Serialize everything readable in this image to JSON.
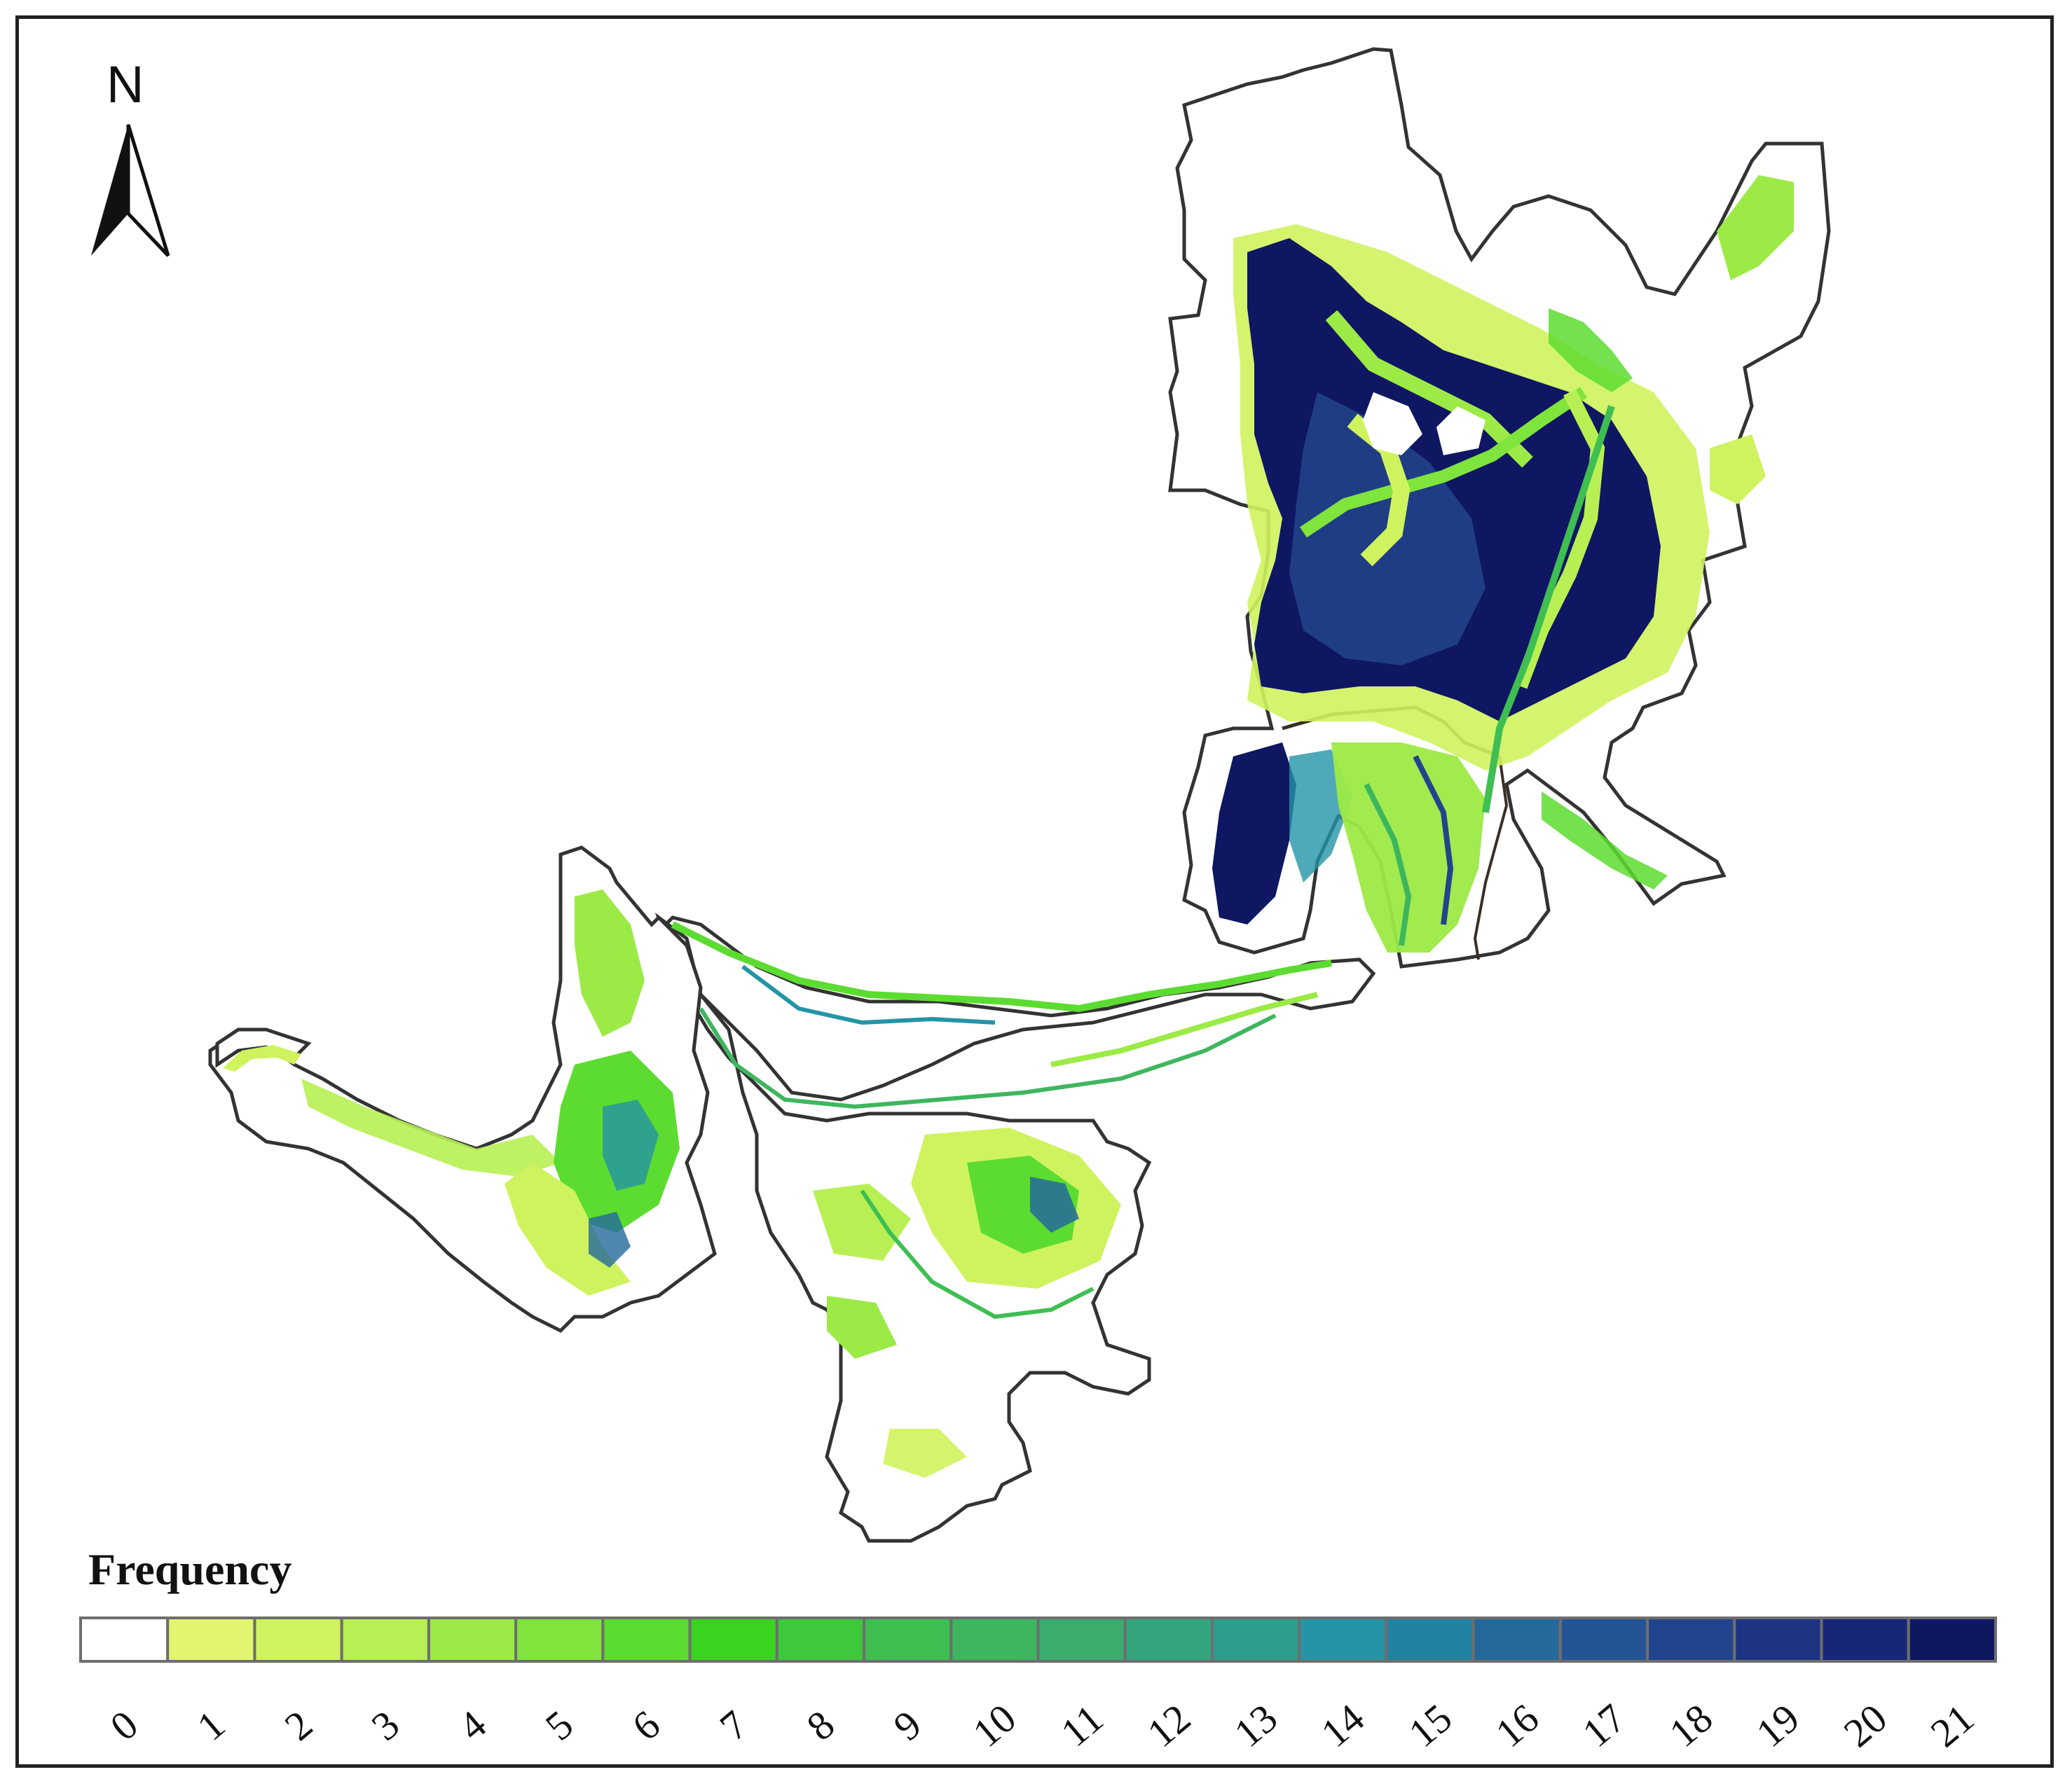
{
  "north_arrow": {
    "label": "N",
    "icon": "north-arrow-icon"
  },
  "legend": {
    "title": "Frequency",
    "classes": [
      {
        "value": "0",
        "color": "#ffffff"
      },
      {
        "value": "1",
        "color": "#e3f56e"
      },
      {
        "value": "2",
        "color": "#cff35e"
      },
      {
        "value": "3",
        "color": "#b8f053"
      },
      {
        "value": "4",
        "color": "#9cea46"
      },
      {
        "value": "5",
        "color": "#7fe43c"
      },
      {
        "value": "6",
        "color": "#5cdc30"
      },
      {
        "value": "7",
        "color": "#3ad420"
      },
      {
        "value": "8",
        "color": "#3ec83c"
      },
      {
        "value": "9",
        "color": "#3fbe52"
      },
      {
        "value": "10",
        "color": "#3eb65e"
      },
      {
        "value": "11",
        "color": "#3aad6e"
      },
      {
        "value": "12",
        "color": "#33a67e"
      },
      {
        "value": "13",
        "color": "#2c9e8c"
      },
      {
        "value": "14",
        "color": "#2494a6"
      },
      {
        "value": "15",
        "color": "#2282a2"
      },
      {
        "value": "16",
        "color": "#23699c"
      },
      {
        "value": "17",
        "color": "#245494"
      },
      {
        "value": "18",
        "color": "#22448c"
      },
      {
        "value": "19",
        "color": "#1e3482"
      },
      {
        "value": "20",
        "color": "#182677"
      },
      {
        "value": "21",
        "color": "#0f1662"
      }
    ]
  },
  "colors": {
    "frame": "#222222",
    "boundary": "#333333",
    "land": "#ffffff"
  }
}
